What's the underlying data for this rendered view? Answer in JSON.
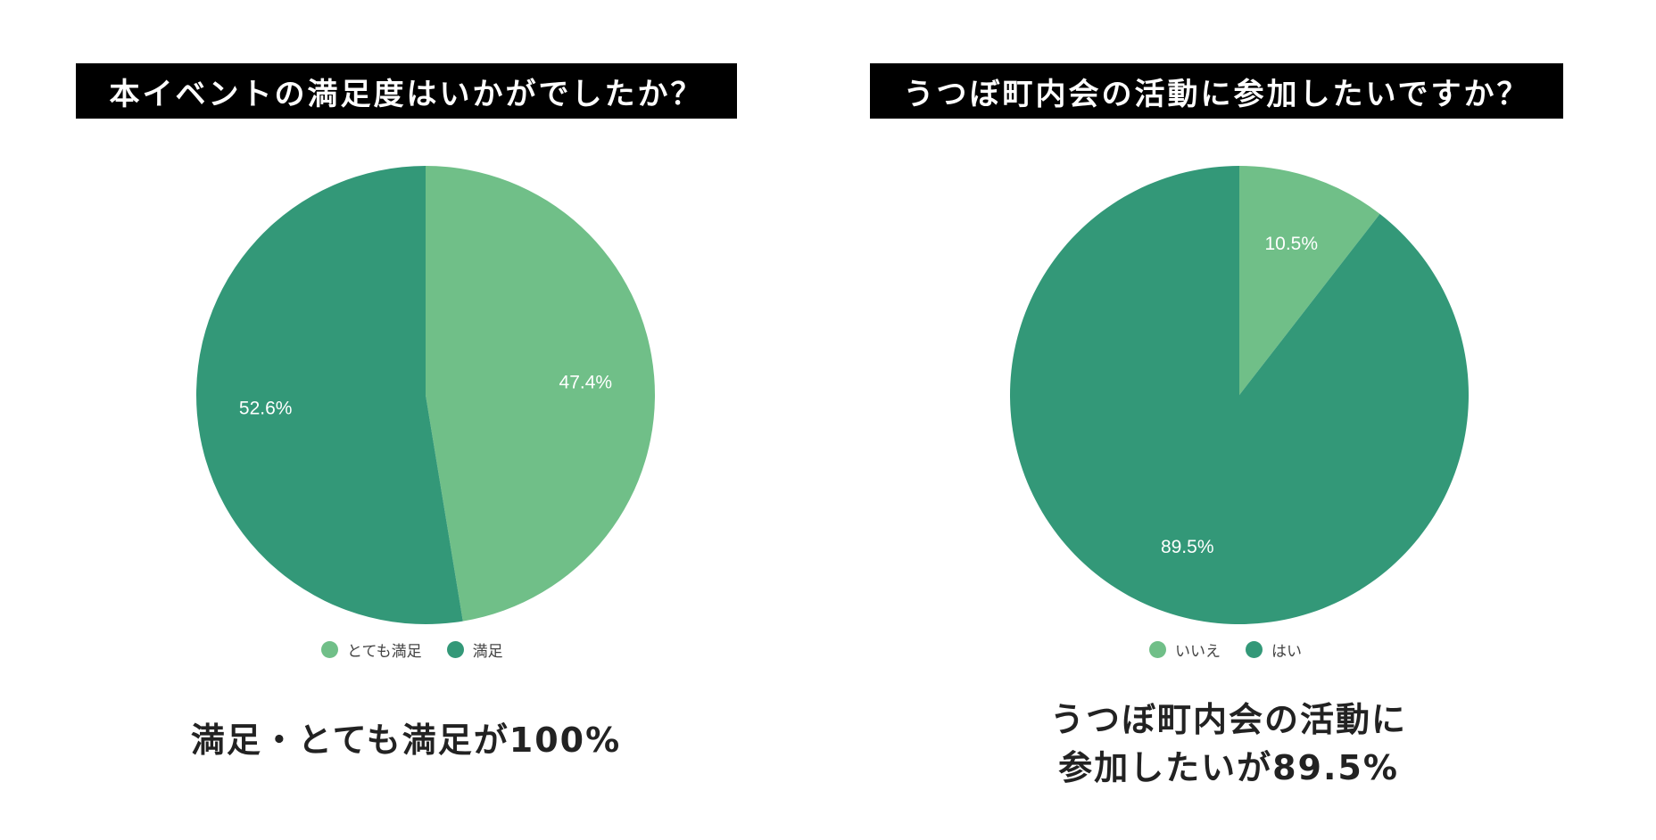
{
  "colors": {
    "light": "#70bf88",
    "dark": "#339878",
    "label": "#ffffff",
    "title_bg": "#000000",
    "title_fg": "#ffffff"
  },
  "chart_data": [
    {
      "type": "pie",
      "title": "本イベントの満足度はいかがでしたか？",
      "categories": [
        "とても満足",
        "満足"
      ],
      "values": [
        47.4,
        52.6
      ],
      "labels": [
        "47.4%",
        "52.6%"
      ],
      "colors": [
        "#70bf88",
        "#339878"
      ],
      "legend": "bottom",
      "caption": "満足・とても満足が100%"
    },
    {
      "type": "pie",
      "title": "うつぼ町内会の活動に参加したいですか？",
      "categories": [
        "いいえ",
        "はい"
      ],
      "values": [
        10.5,
        89.5
      ],
      "labels": [
        "10.5%",
        "89.5%"
      ],
      "colors": [
        "#70bf88",
        "#339878"
      ],
      "legend": "bottom",
      "caption_lines": [
        "うつぼ町内会の活動に",
        "参加したいが89.5%"
      ]
    }
  ]
}
